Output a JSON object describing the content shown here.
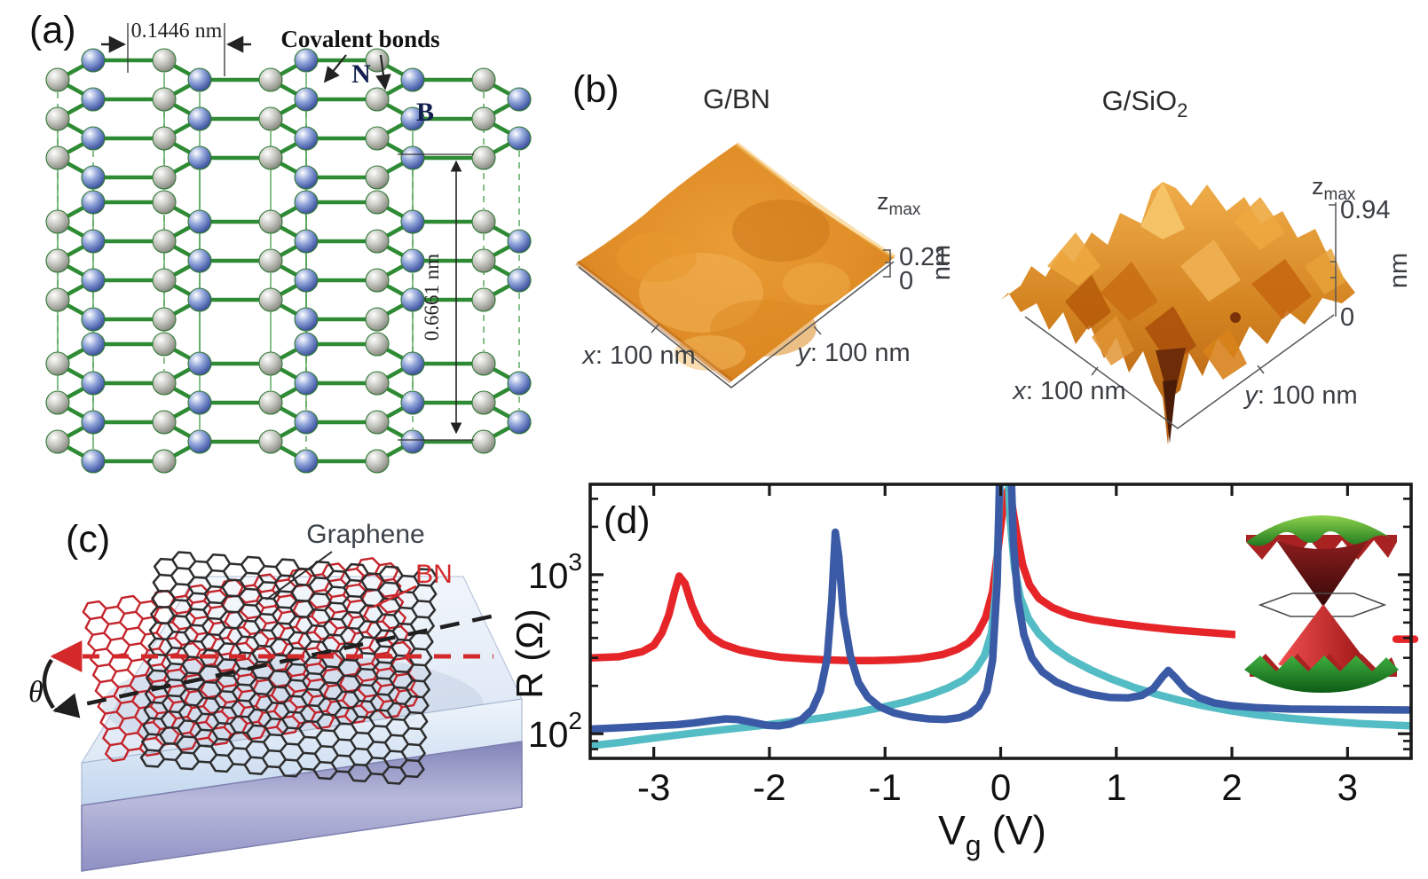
{
  "panels": {
    "a": {
      "label": "(a)",
      "bond_length_label": "0.1446 nm",
      "covalent_bonds_label": "Covalent bonds",
      "nitrogen_label": "N",
      "boron_label": "B",
      "layer_spacing_label": "0.6661 nm",
      "atom_colors": {
        "nitrogen": "#4a5fa8",
        "boron": "#96988f",
        "bond_green": "#2e8b34"
      }
    },
    "b": {
      "label": "(b)",
      "gbn": {
        "title": "G/BN",
        "zmax_base": "z",
        "zmax_sub": "max",
        "zmax_value": "0.21",
        "z_zero": "0",
        "z_unit": "nm",
        "x_axis_italic": "x",
        "x_axis_rest": ": 100 nm",
        "y_axis_italic": "y",
        "y_axis_rest": ": 100 nm"
      },
      "gsio2": {
        "title_base": "G/SiO",
        "title_sub": "2",
        "zmax_base": "z",
        "zmax_sub": "max",
        "zmax_value": "0.94",
        "z_zero": "0",
        "z_unit": "nm",
        "x_axis_italic": "x",
        "x_axis_rest": ": 100 nm",
        "y_axis_italic": "y",
        "y_axis_rest": ": 100 nm"
      }
    },
    "c": {
      "label": "(c)",
      "graphene_label": "Graphene",
      "bn_label": "BN",
      "theta_label": "θ",
      "bn_color": "#c4242b",
      "graphene_color": "#2d2d2d"
    },
    "d": {
      "label": "(d)"
    }
  },
  "chart_data": {
    "type": "line",
    "xlabel_base": "V",
    "xlabel_sub": "g",
    "xlabel_unit": "(V)",
    "ylabel": "R (Ω)",
    "x_scale": "linear",
    "y_scale": "log",
    "xlim": [
      -3.55,
      3.55
    ],
    "ylim": [
      70,
      3700
    ],
    "x_ticks": [
      -3,
      -2,
      -1,
      0,
      1,
      2,
      3
    ],
    "y_major_ticks": [
      100,
      1000
    ],
    "y_minor_ticks": [
      80,
      90,
      200,
      300,
      400,
      500,
      600,
      700,
      800,
      900,
      2000,
      3000
    ],
    "grid": false,
    "legend": "none",
    "inset_description": "moire superlattice Dirac band structure",
    "series": [
      {
        "name": "red",
        "color": "#e62529",
        "points": [
          [
            -3.55,
            300
          ],
          [
            -3.3,
            305
          ],
          [
            -3.1,
            328
          ],
          [
            -3.0,
            360
          ],
          [
            -2.93,
            430
          ],
          [
            -2.87,
            560
          ],
          [
            -2.82,
            780
          ],
          [
            -2.78,
            980
          ],
          [
            -2.73,
            880
          ],
          [
            -2.67,
            640
          ],
          [
            -2.6,
            490
          ],
          [
            -2.5,
            405
          ],
          [
            -2.4,
            365
          ],
          [
            -2.25,
            335
          ],
          [
            -2.1,
            318
          ],
          [
            -1.9,
            303
          ],
          [
            -1.7,
            296
          ],
          [
            -1.5,
            291
          ],
          [
            -1.3,
            288
          ],
          [
            -1.1,
            288
          ],
          [
            -0.9,
            291
          ],
          [
            -0.7,
            298
          ],
          [
            -0.5,
            315
          ],
          [
            -0.38,
            338
          ],
          [
            -0.28,
            372
          ],
          [
            -0.2,
            430
          ],
          [
            -0.13,
            540
          ],
          [
            -0.07,
            780
          ],
          [
            -0.02,
            1500
          ],
          [
            0.02,
            2600
          ],
          [
            0.06,
            3400
          ],
          [
            0.1,
            2700
          ],
          [
            0.14,
            1800
          ],
          [
            0.19,
            1150
          ],
          [
            0.25,
            860
          ],
          [
            0.33,
            710
          ],
          [
            0.45,
            620
          ],
          [
            0.6,
            560
          ],
          [
            0.8,
            520
          ],
          [
            1.0,
            495
          ],
          [
            1.25,
            470
          ],
          [
            1.5,
            450
          ],
          [
            1.75,
            435
          ],
          [
            2.0,
            422
          ],
          [
            2.2,
            415
          ]
        ]
      },
      {
        "name": "cyan",
        "color": "#54bcc4",
        "points": [
          [
            -3.55,
            84
          ],
          [
            -3.3,
            88
          ],
          [
            -3.0,
            94
          ],
          [
            -2.7,
            100
          ],
          [
            -2.4,
            106
          ],
          [
            -2.1,
            112
          ],
          [
            -1.8,
            119
          ],
          [
            -1.5,
            127
          ],
          [
            -1.25,
            136
          ],
          [
            -1.0,
            148
          ],
          [
            -0.8,
            160
          ],
          [
            -0.6,
            177
          ],
          [
            -0.45,
            195
          ],
          [
            -0.32,
            218
          ],
          [
            -0.22,
            252
          ],
          [
            -0.14,
            310
          ],
          [
            -0.08,
            430
          ],
          [
            -0.04,
            800
          ],
          [
            -0.01,
            3000
          ],
          [
            0.01,
            8000
          ],
          [
            0.05,
            8000
          ],
          [
            0.08,
            2300
          ],
          [
            0.12,
            1100
          ],
          [
            0.17,
            720
          ],
          [
            0.24,
            530
          ],
          [
            0.33,
            425
          ],
          [
            0.45,
            350
          ],
          [
            0.6,
            295
          ],
          [
            0.78,
            252
          ],
          [
            0.95,
            222
          ],
          [
            1.15,
            196
          ],
          [
            1.35,
            177
          ],
          [
            1.55,
            162
          ],
          [
            1.75,
            150
          ],
          [
            1.95,
            141
          ],
          [
            2.2,
            132
          ],
          [
            2.5,
            125
          ],
          [
            2.8,
            120
          ],
          [
            3.1,
            116
          ],
          [
            3.55,
            112
          ]
        ]
      },
      {
        "name": "blue",
        "color": "#3b5aa5",
        "points": [
          [
            -3.55,
            107
          ],
          [
            -3.3,
            109
          ],
          [
            -3.0,
            112
          ],
          [
            -2.8,
            114
          ],
          [
            -2.65,
            117
          ],
          [
            -2.5,
            121
          ],
          [
            -2.38,
            124
          ],
          [
            -2.28,
            123
          ],
          [
            -2.15,
            118
          ],
          [
            -2.02,
            113
          ],
          [
            -1.92,
            112
          ],
          [
            -1.82,
            115
          ],
          [
            -1.72,
            123
          ],
          [
            -1.63,
            142
          ],
          [
            -1.56,
            185
          ],
          [
            -1.5,
            300
          ],
          [
            -1.46,
            700
          ],
          [
            -1.43,
            1850
          ],
          [
            -1.4,
            1300
          ],
          [
            -1.36,
            560
          ],
          [
            -1.3,
            310
          ],
          [
            -1.23,
            210
          ],
          [
            -1.15,
            170
          ],
          [
            -1.05,
            148
          ],
          [
            -0.92,
            135
          ],
          [
            -0.78,
            128
          ],
          [
            -0.62,
            124
          ],
          [
            -0.48,
            123
          ],
          [
            -0.36,
            126
          ],
          [
            -0.27,
            133
          ],
          [
            -0.19,
            148
          ],
          [
            -0.12,
            185
          ],
          [
            -0.07,
            290
          ],
          [
            -0.03,
            900
          ],
          [
            0.0,
            8000
          ],
          [
            0.08,
            8000
          ],
          [
            0.11,
            1600
          ],
          [
            0.15,
            700
          ],
          [
            0.2,
            420
          ],
          [
            0.27,
            300
          ],
          [
            0.36,
            245
          ],
          [
            0.48,
            212
          ],
          [
            0.62,
            191
          ],
          [
            0.78,
            177
          ],
          [
            0.95,
            169
          ],
          [
            1.1,
            168
          ],
          [
            1.22,
            174
          ],
          [
            1.32,
            192
          ],
          [
            1.4,
            228
          ],
          [
            1.45,
            250
          ],
          [
            1.51,
            226
          ],
          [
            1.6,
            190
          ],
          [
            1.72,
            168
          ],
          [
            1.85,
            156
          ],
          [
            2.0,
            150
          ],
          [
            2.2,
            146
          ],
          [
            2.5,
            143
          ],
          [
            2.9,
            142
          ],
          [
            3.55,
            141
          ]
        ]
      },
      {
        "name": "red-edge-segment",
        "color": "#e62529",
        "drawn_over_inset": true,
        "points": [
          [
            3.42,
            393
          ],
          [
            3.58,
            393
          ]
        ]
      }
    ]
  }
}
